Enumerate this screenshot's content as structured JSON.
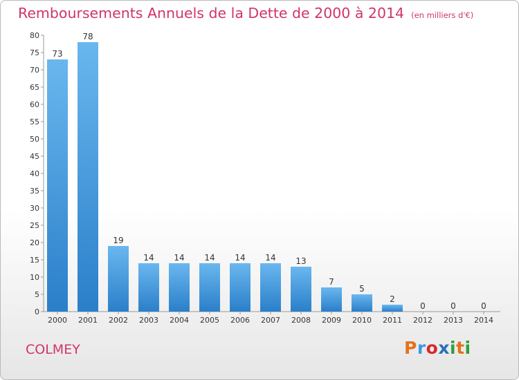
{
  "title": "Remboursements Annuels de la Dette de 2000 à 2014",
  "unit": "(en milliers d'€)",
  "commune": "COLMEY",
  "logo": {
    "letters": [
      "P",
      "r",
      "o",
      "x",
      "i",
      "t",
      "i"
    ],
    "colors": [
      "#e8701a",
      "#3b9be0",
      "#d62b2b",
      "#2a6fb8",
      "#2e9e3e",
      "#e8701a",
      "#2e9e3e"
    ]
  },
  "colors": {
    "bar": "#3a93dc",
    "bar_light": "#6ab7ef",
    "text": "#d1336b"
  },
  "chart_data": {
    "type": "bar",
    "title": "Remboursements Annuels de la Dette de 2000 à 2014",
    "categories": [
      "2000",
      "2001",
      "2002",
      "2003",
      "2004",
      "2005",
      "2006",
      "2007",
      "2008",
      "2009",
      "2010",
      "2011",
      "2012",
      "2013",
      "2014"
    ],
    "values": [
      73,
      78,
      19,
      14,
      14,
      14,
      14,
      14,
      13,
      7,
      5,
      2,
      0,
      0,
      0
    ],
    "ylim": [
      0,
      80
    ],
    "yticks": [
      0,
      5,
      10,
      15,
      20,
      25,
      30,
      35,
      40,
      45,
      50,
      55,
      60,
      65,
      70,
      75,
      80
    ],
    "grid": false
  }
}
